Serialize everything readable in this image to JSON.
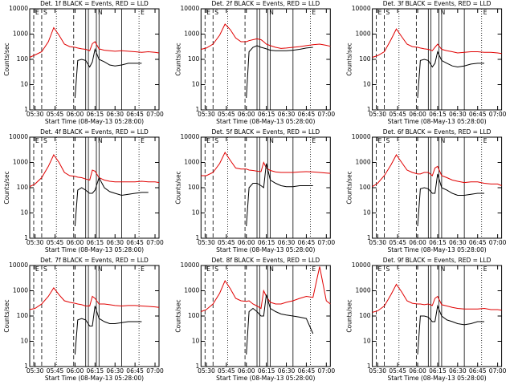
{
  "markers": [
    {
      "x": "05:29",
      "style": "dashed",
      "label": "E"
    },
    {
      "x": "05:35",
      "style": "dashed",
      "label": "S"
    },
    {
      "x": "05:46",
      "style": "dotted"
    },
    {
      "x": "05:59",
      "style": "dashed"
    },
    {
      "x": "06:08",
      "style": "solid"
    },
    {
      "x": "06:10",
      "style": "solid"
    },
    {
      "x": "06:16",
      "style": "solid",
      "label": "N"
    },
    {
      "x": "06:18",
      "style": "solid"
    },
    {
      "x": "06:35",
      "style": "solid"
    },
    {
      "x": "06:48",
      "style": "dotted",
      "label": "E"
    }
  ],
  "chart_data": [
    {
      "type": "line",
      "title": "Det. 1f BLACK = Events, RED = LLD",
      "xlabel": "Start Time (08-May-13 05:28:00)",
      "ylabel": "Counts/sec",
      "yscale": "log",
      "xlim": [
        "05:26",
        "07:03"
      ],
      "xticks": [
        "05:30",
        "05:45",
        "06:00",
        "06:15",
        "06:30",
        "06:45",
        "07:00"
      ],
      "ylim": [
        1,
        10000
      ],
      "yticks": [
        1,
        10,
        100,
        1000,
        10000
      ],
      "x": [
        "05:26",
        "05:30",
        "05:35",
        "05:40",
        "05:44",
        "05:48",
        "05:52",
        "05:56",
        "06:00",
        "06:02",
        "06:05",
        "06:08",
        "06:11",
        "06:13",
        "06:15",
        "06:18",
        "06:22",
        "06:26",
        "06:30",
        "06:35",
        "06:40",
        "06:45",
        "06:50",
        "06:55",
        "07:00",
        "07:03"
      ],
      "series": [
        {
          "color": "#e00000",
          "values": [
            120,
            150,
            200,
            500,
            1800,
            900,
            400,
            320,
            300,
            280,
            260,
            250,
            220,
            420,
            500,
            260,
            230,
            220,
            210,
            220,
            210,
            200,
            190,
            200,
            190,
            180
          ]
        },
        {
          "color": "#000000",
          "values": [
            null,
            null,
            null,
            null,
            null,
            null,
            null,
            null,
            3,
            90,
            100,
            90,
            50,
            80,
            250,
            100,
            80,
            60,
            55,
            60,
            70,
            70,
            70,
            null,
            null,
            null
          ]
        }
      ]
    },
    {
      "type": "line",
      "title": "Det. 2f BLACK = Events, RED = LLD",
      "xlabel": "Start Time (08-May-13 05:28:00)",
      "ylabel": "Counts/sec",
      "yscale": "log",
      "xlim": [
        "05:26",
        "07:03"
      ],
      "xticks": [
        "05:30",
        "05:45",
        "06:00",
        "06:15",
        "06:30",
        "06:45",
        "07:00"
      ],
      "ylim": [
        1,
        10000
      ],
      "yticks": [
        1,
        10,
        100,
        1000,
        10000
      ],
      "x": [
        "05:26",
        "05:30",
        "05:35",
        "05:40",
        "05:44",
        "05:48",
        "05:52",
        "05:56",
        "06:00",
        "06:02",
        "06:05",
        "06:08",
        "06:11",
        "06:13",
        "06:15",
        "06:18",
        "06:22",
        "06:26",
        "06:30",
        "06:35",
        "06:40",
        "06:45",
        "06:50",
        "06:55",
        "07:00",
        "07:03"
      ],
      "series": [
        {
          "color": "#e00000",
          "values": [
            250,
            280,
            400,
            900,
            2500,
            1500,
            700,
            500,
            500,
            550,
            600,
            650,
            600,
            500,
            400,
            350,
            300,
            270,
            280,
            300,
            320,
            350,
            380,
            400,
            360,
            330
          ]
        },
        {
          "color": "#000000",
          "values": [
            null,
            null,
            null,
            null,
            null,
            null,
            null,
            null,
            3,
            200,
            300,
            350,
            300,
            280,
            260,
            230,
            220,
            220,
            220,
            230,
            250,
            280,
            300,
            null,
            null,
            null
          ]
        }
      ]
    },
    {
      "type": "line",
      "title": "Det. 3f BLACK = Events, RED = LLD",
      "xlabel": "Start Time (08-May-13 05:28:00)",
      "ylabel": "Counts/sec",
      "yscale": "log",
      "xlim": [
        "05:26",
        "07:03"
      ],
      "xticks": [
        "05:30",
        "05:45",
        "06:00",
        "06:15",
        "06:30",
        "06:45",
        "07:00"
      ],
      "ylim": [
        1,
        10000
      ],
      "yticks": [
        1,
        10,
        100,
        1000,
        10000
      ],
      "x": [
        "05:26",
        "05:30",
        "05:35",
        "05:40",
        "05:44",
        "05:48",
        "05:52",
        "05:56",
        "06:00",
        "06:02",
        "06:05",
        "06:08",
        "06:11",
        "06:13",
        "06:15",
        "06:18",
        "06:22",
        "06:26",
        "06:30",
        "06:35",
        "06:40",
        "06:45",
        "06:50",
        "06:55",
        "07:00",
        "07:03"
      ],
      "series": [
        {
          "color": "#e00000",
          "values": [
            120,
            140,
            200,
            600,
            1600,
            800,
            400,
            320,
            300,
            280,
            260,
            250,
            220,
            300,
            400,
            250,
            220,
            200,
            180,
            190,
            200,
            200,
            190,
            190,
            180,
            170
          ]
        },
        {
          "color": "#000000",
          "values": [
            null,
            null,
            null,
            null,
            null,
            null,
            null,
            null,
            3,
            90,
            100,
            90,
            50,
            70,
            200,
            90,
            70,
            55,
            50,
            55,
            65,
            70,
            70,
            null,
            null,
            null
          ]
        }
      ]
    },
    {
      "type": "line",
      "title": "Det. 4f BLACK = Events, RED = LLD",
      "xlabel": "Start Time (08-May-13 05:28:00)",
      "ylabel": "Counts/sec",
      "yscale": "log",
      "xlim": [
        "05:26",
        "07:03"
      ],
      "xticks": [
        "05:30",
        "05:45",
        "06:00",
        "06:15",
        "06:30",
        "06:45",
        "07:00"
      ],
      "ylim": [
        1,
        10000
      ],
      "yticks": [
        1,
        10,
        100,
        1000,
        10000
      ],
      "x": [
        "05:26",
        "05:30",
        "05:35",
        "05:40",
        "05:44",
        "05:48",
        "05:52",
        "05:56",
        "06:00",
        "06:02",
        "06:05",
        "06:08",
        "06:11",
        "06:13",
        "06:15",
        "06:18",
        "06:22",
        "06:26",
        "06:30",
        "06:35",
        "06:40",
        "06:45",
        "06:50",
        "06:55",
        "07:00",
        "07:03"
      ],
      "series": [
        {
          "color": "#e00000",
          "values": [
            110,
            140,
            250,
            700,
            2000,
            1000,
            400,
            300,
            280,
            260,
            250,
            220,
            200,
            500,
            450,
            250,
            200,
            180,
            170,
            170,
            170,
            170,
            180,
            170,
            170,
            160
          ]
        },
        {
          "color": "#000000",
          "values": [
            null,
            null,
            null,
            null,
            null,
            null,
            null,
            null,
            3,
            80,
            100,
            80,
            60,
            60,
            80,
            250,
            100,
            70,
            60,
            50,
            55,
            60,
            65,
            65,
            null,
            null
          ]
        }
      ]
    },
    {
      "type": "line",
      "title": "Det. 5f BLACK = Events, RED = LLD",
      "xlabel": "Start Time (08-May-13 05:28:00)",
      "ylabel": "Counts/sec",
      "yscale": "log",
      "xlim": [
        "05:26",
        "07:03"
      ],
      "xticks": [
        "05:30",
        "05:45",
        "06:00",
        "06:15",
        "06:30",
        "06:45",
        "07:00"
      ],
      "ylim": [
        1,
        10000
      ],
      "yticks": [
        1,
        10,
        100,
        1000,
        10000
      ],
      "x": [
        "05:26",
        "05:30",
        "05:35",
        "05:40",
        "05:44",
        "05:48",
        "05:52",
        "05:56",
        "06:00",
        "06:02",
        "06:05",
        "06:08",
        "06:11",
        "06:13",
        "06:15",
        "06:18",
        "06:22",
        "06:26",
        "06:30",
        "06:35",
        "06:40",
        "06:45",
        "06:50",
        "06:55",
        "07:00",
        "07:03"
      ],
      "series": [
        {
          "color": "#e00000",
          "values": [
            300,
            300,
            400,
            900,
            2500,
            1200,
            600,
            550,
            550,
            500,
            480,
            450,
            430,
            1000,
            600,
            480,
            420,
            400,
            400,
            400,
            420,
            430,
            420,
            400,
            380,
            370
          ]
        },
        {
          "color": "#000000",
          "values": [
            null,
            null,
            null,
            null,
            null,
            null,
            null,
            null,
            3,
            100,
            150,
            150,
            120,
            100,
            900,
            200,
            150,
            120,
            110,
            110,
            120,
            120,
            120,
            null,
            null,
            null
          ]
        }
      ]
    },
    {
      "type": "line",
      "title": "Det. 6f BLACK = Events, RED = LLD",
      "xlabel": "Start Time (08-May-13 05:28:00)",
      "ylabel": "Counts/sec",
      "yscale": "log",
      "xlim": [
        "05:26",
        "07:03"
      ],
      "xticks": [
        "05:30",
        "05:45",
        "06:00",
        "06:15",
        "06:30",
        "06:45",
        "07:00"
      ],
      "ylim": [
        1,
        10000
      ],
      "yticks": [
        1,
        10,
        100,
        1000,
        10000
      ],
      "x": [
        "05:26",
        "05:30",
        "05:35",
        "05:40",
        "05:44",
        "05:48",
        "05:52",
        "05:56",
        "06:00",
        "06:02",
        "06:05",
        "06:08",
        "06:11",
        "06:13",
        "06:15",
        "06:18",
        "06:22",
        "06:26",
        "06:30",
        "06:35",
        "06:40",
        "06:45",
        "06:50",
        "06:55",
        "07:00",
        "07:03"
      ],
      "series": [
        {
          "color": "#e00000",
          "values": [
            110,
            150,
            300,
            800,
            2000,
            1000,
            500,
            400,
            350,
            350,
            400,
            400,
            300,
            600,
            700,
            300,
            250,
            200,
            180,
            160,
            170,
            170,
            150,
            140,
            140,
            120
          ]
        },
        {
          "color": "#000000",
          "values": [
            null,
            null,
            null,
            null,
            null,
            null,
            null,
            null,
            3,
            90,
            100,
            90,
            60,
            60,
            350,
            100,
            80,
            60,
            50,
            50,
            55,
            60,
            60,
            null,
            null,
            null
          ]
        }
      ]
    },
    {
      "type": "line",
      "title": "Det. 7f BLACK = Events, RED = LLD",
      "xlabel": "Start Time (08-May-13 05:28:00)",
      "ylabel": "Counts/sec",
      "yscale": "log",
      "xlim": [
        "05:26",
        "07:03"
      ],
      "xticks": [
        "05:30",
        "05:45",
        "06:00",
        "06:15",
        "06:30",
        "06:45",
        "07:00"
      ],
      "ylim": [
        1,
        10000
      ],
      "yticks": [
        1,
        10,
        100,
        1000,
        10000
      ],
      "x": [
        "05:26",
        "05:30",
        "05:35",
        "05:40",
        "05:44",
        "05:48",
        "05:52",
        "05:56",
        "06:00",
        "06:02",
        "06:05",
        "06:08",
        "06:11",
        "06:13",
        "06:15",
        "06:18",
        "06:22",
        "06:26",
        "06:30",
        "06:35",
        "06:40",
        "06:45",
        "06:50",
        "06:55",
        "07:00",
        "07:03"
      ],
      "series": [
        {
          "color": "#e00000",
          "values": [
            180,
            200,
            300,
            600,
            1300,
            700,
            400,
            350,
            320,
            300,
            280,
            250,
            250,
            600,
            500,
            300,
            300,
            280,
            260,
            250,
            260,
            260,
            250,
            240,
            230,
            220
          ]
        },
        {
          "color": "#000000",
          "values": [
            null,
            null,
            null,
            null,
            null,
            null,
            null,
            null,
            3,
            70,
            80,
            70,
            40,
            40,
            250,
            80,
            60,
            50,
            50,
            55,
            60,
            60,
            60,
            null,
            null,
            null
          ]
        }
      ]
    },
    {
      "type": "line",
      "title": "Det. 8f BLACK = Events, RED = LLD",
      "xlabel": "Start Time (08-May-13 05:28:00)",
      "ylabel": "Counts/sec",
      "yscale": "log",
      "xlim": [
        "05:26",
        "07:03"
      ],
      "xticks": [
        "05:30",
        "05:45",
        "06:00",
        "06:15",
        "06:30",
        "06:45",
        "07:00"
      ],
      "ylim": [
        1,
        10000
      ],
      "yticks": [
        1,
        10,
        100,
        1000,
        10000
      ],
      "x": [
        "05:26",
        "05:30",
        "05:35",
        "05:40",
        "05:44",
        "05:48",
        "05:52",
        "05:56",
        "06:00",
        "06:02",
        "06:05",
        "06:08",
        "06:11",
        "06:13",
        "06:15",
        "06:18",
        "06:22",
        "06:26",
        "06:30",
        "06:35",
        "06:40",
        "06:45",
        "06:50",
        "06:55",
        "07:00",
        "07:03"
      ],
      "series": [
        {
          "color": "#e00000",
          "values": [
            150,
            180,
            300,
            800,
            2500,
            1200,
            500,
            400,
            380,
            400,
            300,
            250,
            200,
            1000,
            600,
            350,
            300,
            300,
            350,
            400,
            500,
            600,
            550,
            9000,
            400,
            300
          ]
        },
        {
          "color": "#000000",
          "values": [
            null,
            null,
            null,
            null,
            null,
            null,
            null,
            null,
            3,
            150,
            200,
            150,
            100,
            100,
            700,
            200,
            150,
            120,
            110,
            100,
            90,
            80,
            20,
            null,
            null,
            null
          ]
        }
      ]
    },
    {
      "type": "line",
      "title": "Det. 9f BLACK = Events, RED = LLD",
      "xlabel": "Start Time (08-May-13 05:28:00)",
      "ylabel": "Counts/sec",
      "yscale": "log",
      "xlim": [
        "05:26",
        "07:03"
      ],
      "xticks": [
        "05:30",
        "05:45",
        "06:00",
        "06:15",
        "06:30",
        "06:45",
        "07:00"
      ],
      "ylim": [
        1,
        10000
      ],
      "yticks": [
        1,
        10,
        100,
        1000,
        10000
      ],
      "x": [
        "05:26",
        "05:30",
        "05:35",
        "05:40",
        "05:44",
        "05:48",
        "05:52",
        "05:56",
        "06:00",
        "06:02",
        "06:05",
        "06:08",
        "06:11",
        "06:13",
        "06:15",
        "06:18",
        "06:22",
        "06:26",
        "06:30",
        "06:35",
        "06:40",
        "06:45",
        "06:50",
        "06:55",
        "07:00",
        "07:03"
      ],
      "series": [
        {
          "color": "#e00000",
          "values": [
            140,
            160,
            250,
            700,
            1800,
            900,
            400,
            320,
            300,
            300,
            280,
            300,
            260,
            500,
            600,
            280,
            250,
            220,
            200,
            190,
            190,
            190,
            200,
            180,
            180,
            170
          ]
        },
        {
          "color": "#000000",
          "values": [
            null,
            null,
            null,
            null,
            null,
            null,
            null,
            null,
            3,
            100,
            100,
            90,
            60,
            60,
            250,
            100,
            70,
            60,
            50,
            45,
            50,
            60,
            60,
            null,
            null,
            null
          ]
        }
      ]
    }
  ]
}
